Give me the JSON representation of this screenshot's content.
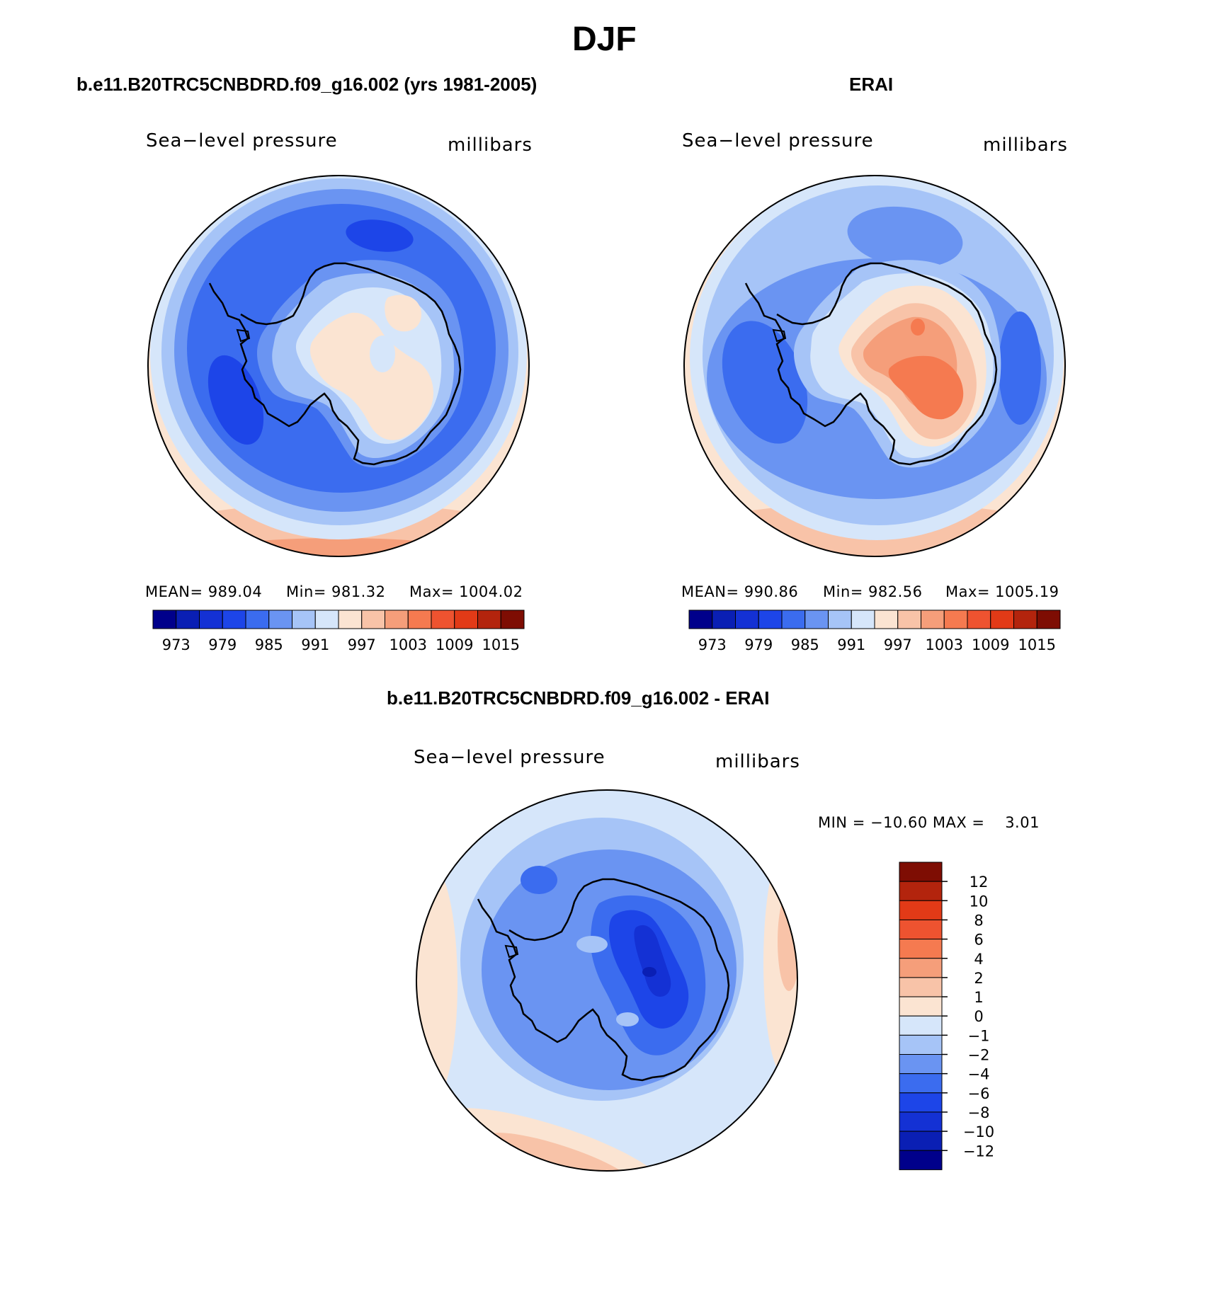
{
  "figure": {
    "season": "DJF"
  },
  "chart_data": [
    {
      "type": "heatmap",
      "panel_title": "b.e11.B20TRC5CNBDRD.f09_g16.002 (yrs 1981-2005)",
      "field_label": "Sea−level pressure",
      "units_label": "millibars",
      "stats": {
        "mean_text": "MEAN= 989.04",
        "min_text": "Min= 981.32",
        "max_text": "Max= 1004.02"
      },
      "projection": "south-polar-stereographic",
      "levels": [
        973,
        976,
        979,
        982,
        985,
        988,
        991,
        994,
        997,
        1000,
        1003,
        1006,
        1009,
        1012,
        1015
      ],
      "tick_labels": [
        "973",
        "979",
        "985",
        "991",
        "997",
        "1003",
        "1009",
        "1015"
      ],
      "colors": [
        "#00008b",
        "#0a1fb4",
        "#1431d4",
        "#1d45e8",
        "#3b6cef",
        "#6a94f2",
        "#a6c4f7",
        "#d6e6fa",
        "#fbe4d2",
        "#f8c3a8",
        "#f59e7a",
        "#f57a50",
        "#ee5330",
        "#e23a17",
        "#b3240d",
        "#7e0d03"
      ],
      "regions": [
        "ocean-low-belt",
        "antarctic-interior"
      ]
    },
    {
      "type": "heatmap",
      "panel_title": "ERAI",
      "field_label": "Sea−level pressure",
      "units_label": "millibars",
      "stats": {
        "mean_text": "MEAN= 990.86",
        "min_text": "Min= 982.56",
        "max_text": "Max= 1005.19"
      },
      "projection": "south-polar-stereographic",
      "levels": [
        973,
        976,
        979,
        982,
        985,
        988,
        991,
        994,
        997,
        1000,
        1003,
        1006,
        1009,
        1012,
        1015
      ],
      "tick_labels": [
        "973",
        "979",
        "985",
        "991",
        "997",
        "1003",
        "1009",
        "1015"
      ],
      "colors": [
        "#00008b",
        "#0a1fb4",
        "#1431d4",
        "#1d45e8",
        "#3b6cef",
        "#6a94f2",
        "#a6c4f7",
        "#d6e6fa",
        "#fbe4d2",
        "#f8c3a8",
        "#f59e7a",
        "#f57a50",
        "#ee5330",
        "#e23a17",
        "#b3240d",
        "#7e0d03"
      ],
      "regions": [
        "ocean-low-belt",
        "antarctic-interior"
      ]
    },
    {
      "type": "heatmap",
      "panel_title": "b.e11.B20TRC5CNBDRD.f09_g16.002 - ERAI",
      "field_label": "Sea−level pressure",
      "units_label": "millibars",
      "stats": {
        "minmax_text": "MIN = −10.60 MAX =    3.01"
      },
      "projection": "south-polar-stereographic",
      "levels": [
        -12,
        -10,
        -8,
        -6,
        -4,
        -2,
        -1,
        0,
        1,
        2,
        4,
        6,
        8,
        10,
        12
      ],
      "tick_labels": [
        "12",
        "10",
        "8",
        "6",
        "4",
        "2",
        "1",
        "0",
        "−1",
        "−2",
        "−4",
        "−6",
        "−8",
        "−10",
        "−12"
      ],
      "colors_top_to_bottom": [
        "#7e0d03",
        "#b3240d",
        "#e23a17",
        "#ee5330",
        "#f57a50",
        "#f59e7a",
        "#f8c3a8",
        "#fbe4d2",
        "#d6e6fa",
        "#a6c4f7",
        "#6a94f2",
        "#3b6cef",
        "#1d45e8",
        "#1431d4",
        "#0a1fb4",
        "#00008b"
      ],
      "regions": [
        "antarctic-interior-negative",
        "southern-ocean-positive"
      ]
    }
  ]
}
